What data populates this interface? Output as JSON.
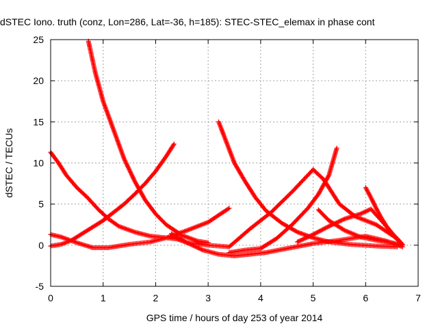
{
  "chart_data": {
    "type": "scatter",
    "title": "dSTEC Iono. truth (conz, Lon=286, Lat=-36, h=185): STEC-STEC_elemax in phase cont",
    "xlabel": "GPS time / hours of day 253 of year 2014",
    "ylabel": "dSTEC  / TECUs",
    "xlim": [
      0,
      7
    ],
    "ylim": [
      -5,
      25
    ],
    "xticks": [
      0,
      1,
      2,
      3,
      4,
      5,
      6,
      7
    ],
    "yticks": [
      -5,
      0,
      5,
      10,
      15,
      20,
      25
    ],
    "grid": true,
    "legend": "none",
    "marker": "plus",
    "color": "#ff0000",
    "series": [
      {
        "x": [
          0.0,
          0.2,
          0.4,
          0.6,
          0.8,
          1.0,
          1.2,
          1.4,
          1.6,
          1.8,
          2.0,
          2.2,
          2.35
        ],
        "y": [
          -0.1,
          0.1,
          0.6,
          1.4,
          2.2,
          3.0,
          4.0,
          5.0,
          6.2,
          7.5,
          9.0,
          10.8,
          12.3
        ]
      },
      {
        "x": [
          0.0,
          0.15,
          0.3,
          0.5,
          0.7,
          0.9,
          1.1,
          1.3,
          1.6,
          1.9,
          2.2,
          2.5
        ],
        "y": [
          11.3,
          10.0,
          8.5,
          7.0,
          5.8,
          4.4,
          3.2,
          2.3,
          1.6,
          1.1,
          0.9,
          0.7
        ]
      },
      {
        "x": [
          0.0,
          0.2,
          0.5,
          0.8,
          1.1,
          1.5,
          1.9,
          2.2,
          2.6,
          3.0,
          3.4
        ],
        "y": [
          1.3,
          1.0,
          0.3,
          -0.3,
          -0.3,
          0.1,
          0.4,
          0.9,
          1.8,
          2.8,
          4.5
        ]
      },
      {
        "x": [
          0.72,
          0.85,
          1.0,
          1.2,
          1.4,
          1.6,
          1.8,
          2.0,
          2.2,
          2.5,
          2.8,
          3.0
        ],
        "y": [
          24.8,
          21.0,
          17.5,
          14.0,
          10.5,
          7.8,
          5.5,
          3.8,
          2.5,
          1.2,
          0.5,
          0.3
        ]
      },
      {
        "x": [
          2.3,
          2.6,
          2.9,
          3.2,
          3.5,
          3.8,
          4.1,
          4.5,
          5.0,
          5.5,
          6.0,
          6.4,
          6.7
        ],
        "y": [
          1.4,
          0.3,
          -0.6,
          -1.1,
          -1.3,
          -1.1,
          -0.9,
          -0.4,
          0.2,
          0.6,
          1.1,
          0.5,
          -0.2
        ]
      },
      {
        "x": [
          2.3,
          2.6,
          3.0,
          3.4,
          3.8,
          4.2,
          4.6,
          5.0,
          5.2,
          5.5,
          5.8,
          6.2,
          6.6,
          6.7
        ],
        "y": [
          1.0,
          0.3,
          0.0,
          -0.2,
          2.0,
          4.0,
          6.5,
          9.2,
          8.0,
          5.0,
          3.5,
          2.5,
          0.8,
          0.1
        ]
      },
      {
        "x": [
          3.2,
          3.35,
          3.5,
          3.7,
          3.9,
          4.1,
          4.4,
          4.7,
          5.0,
          5.3,
          5.7,
          6.2,
          6.6
        ],
        "y": [
          15.0,
          12.5,
          10.0,
          7.8,
          5.8,
          4.2,
          2.7,
          1.6,
          0.9,
          0.4,
          0.1,
          -0.1,
          -0.2
        ]
      },
      {
        "x": [
          3.4,
          3.7,
          4.0,
          4.3,
          4.6,
          4.9,
          5.1,
          5.3,
          5.45
        ],
        "y": [
          -0.9,
          -0.6,
          -0.4,
          0.8,
          2.5,
          4.5,
          6.2,
          8.5,
          11.8
        ]
      },
      {
        "x": [
          5.1,
          5.3,
          5.6,
          5.9,
          6.2,
          6.5,
          6.7
        ],
        "y": [
          4.3,
          3.0,
          1.8,
          1.0,
          0.6,
          0.3,
          0.0
        ]
      },
      {
        "x": [
          4.7,
          5.0,
          5.3,
          5.6,
          5.9,
          6.1,
          6.3,
          6.5,
          6.7
        ],
        "y": [
          0.4,
          1.3,
          2.3,
          3.2,
          3.8,
          4.4,
          3.0,
          1.5,
          0.1
        ]
      },
      {
        "x": [
          6.0,
          6.1,
          6.2,
          6.3,
          6.4,
          6.5,
          6.6,
          6.7
        ],
        "y": [
          7.0,
          5.8,
          4.5,
          3.3,
          2.3,
          1.4,
          0.7,
          0.0
        ]
      }
    ]
  }
}
